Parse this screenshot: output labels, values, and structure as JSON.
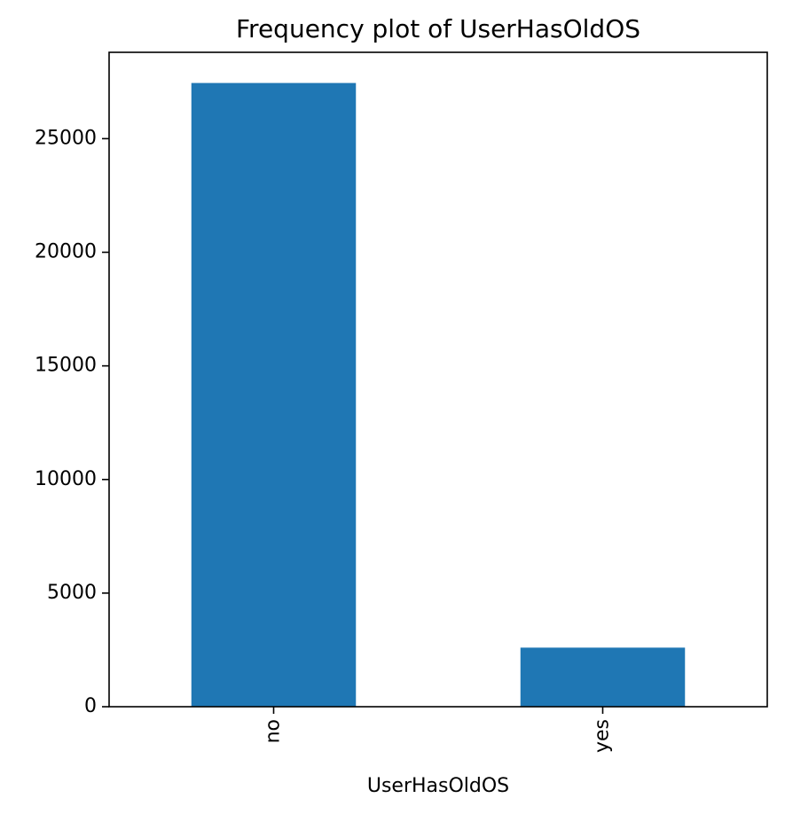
{
  "chart_data": {
    "type": "bar",
    "title": "Frequency plot of UserHasOldOS",
    "xlabel": "UserHasOldOS",
    "ylabel": "",
    "categories": [
      "no",
      "yes"
    ],
    "values": [
      27450,
      2600
    ],
    "ylim": [
      0,
      28800
    ],
    "yticks": [
      0,
      5000,
      10000,
      15000,
      20000,
      25000
    ],
    "bar_color": "#1f77b4",
    "grid": false,
    "legend": "none"
  }
}
